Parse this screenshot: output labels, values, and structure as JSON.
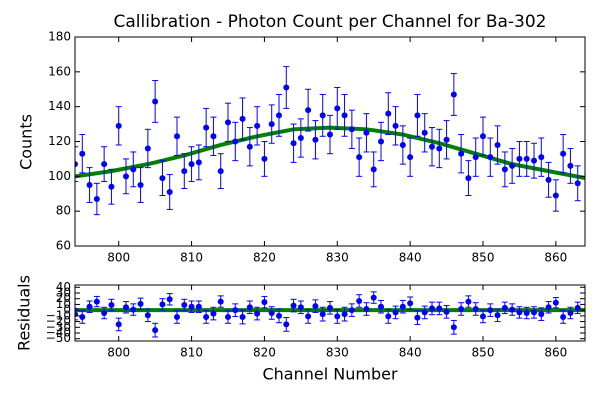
{
  "chart_data": [
    {
      "type": "errorbar",
      "title": "Callibration - Photon Count per Channel for Ba-302",
      "ylabel": "Counts",
      "x": [
        794,
        795,
        796,
        797,
        798,
        799,
        800,
        801,
        802,
        803,
        804,
        805,
        806,
        807,
        808,
        809,
        810,
        811,
        812,
        813,
        814,
        815,
        816,
        817,
        818,
        819,
        820,
        821,
        822,
        823,
        824,
        825,
        826,
        827,
        828,
        829,
        830,
        831,
        832,
        833,
        834,
        835,
        836,
        837,
        838,
        839,
        840,
        841,
        842,
        843,
        844,
        845,
        846,
        847,
        848,
        849,
        850,
        851,
        852,
        853,
        854,
        855,
        856,
        857,
        858,
        859,
        860,
        861,
        862,
        863
      ],
      "values": [
        107,
        113,
        95,
        87,
        107,
        94,
        129,
        100,
        104,
        95,
        116,
        143,
        99,
        91,
        123,
        103,
        107,
        108,
        128,
        123,
        103,
        131,
        120,
        133,
        117,
        129,
        110,
        130,
        135,
        151,
        119,
        122,
        138,
        121,
        135,
        124,
        139,
        135,
        127,
        111,
        125,
        104,
        120,
        136,
        129,
        118,
        111,
        135,
        125,
        117,
        116,
        121,
        147,
        113,
        99,
        111,
        123,
        111,
        118,
        104,
        106,
        110,
        110,
        109,
        111,
        98,
        89,
        113,
        106,
        96
      ],
      "errors": [
        10,
        11,
        10,
        9,
        10,
        10,
        11,
        10,
        10,
        10,
        11,
        12,
        10,
        10,
        11,
        10,
        10,
        10,
        11,
        11,
        10,
        11,
        11,
        12,
        11,
        11,
        10,
        11,
        12,
        12,
        11,
        11,
        12,
        11,
        12,
        11,
        12,
        12,
        11,
        11,
        11,
        10,
        11,
        12,
        11,
        11,
        11,
        12,
        11,
        11,
        11,
        11,
        12,
        11,
        10,
        11,
        11,
        11,
        11,
        10,
        10,
        10,
        10,
        10,
        11,
        10,
        9,
        11,
        10,
        10
      ],
      "color": "#0000ff",
      "fit": {
        "x": [
          794,
          799,
          804,
          809,
          814,
          819,
          824,
          829,
          834,
          839,
          844,
          849,
          854,
          859,
          864
        ],
        "values": [
          100,
          103,
          107,
          112,
          118,
          123,
          127,
          128,
          127,
          124,
          119,
          113,
          107,
          103,
          99
        ],
        "color": "#008000"
      },
      "xlim": [
        794,
        864
      ],
      "ylim": [
        60,
        180
      ],
      "xticks": [
        800,
        810,
        820,
        830,
        840,
        850,
        860
      ],
      "yticks": [
        60,
        80,
        100,
        120,
        140,
        160,
        180
      ]
    },
    {
      "type": "errorbar",
      "xlabel": "Channel Number",
      "ylabel": "Residuals",
      "x": [
        794,
        795,
        796,
        797,
        798,
        799,
        800,
        801,
        802,
        803,
        804,
        805,
        806,
        807,
        808,
        809,
        810,
        811,
        812,
        813,
        814,
        815,
        816,
        817,
        818,
        819,
        820,
        821,
        822,
        823,
        824,
        825,
        826,
        827,
        828,
        829,
        830,
        831,
        832,
        833,
        834,
        835,
        836,
        837,
        838,
        839,
        840,
        841,
        842,
        843,
        844,
        845,
        846,
        847,
        848,
        849,
        850,
        851,
        852,
        853,
        854,
        855,
        856,
        857,
        858,
        859,
        860,
        861,
        862,
        863
      ],
      "values": [
        -7,
        -12,
        6,
        15,
        -5,
        9,
        -25,
        5,
        1,
        11,
        -9,
        -35,
        10,
        19,
        -12,
        9,
        6,
        6,
        -12,
        -6,
        15,
        -12,
        0,
        -12,
        5,
        -6,
        14,
        -5,
        -10,
        -25,
        8,
        5,
        -11,
        7,
        -7,
        4,
        -11,
        -7,
        0,
        16,
        2,
        22,
        6,
        -11,
        -4,
        6,
        12,
        -13,
        -4,
        3,
        3,
        -3,
        -30,
        2,
        15,
        2,
        -11,
        0,
        -9,
        4,
        1,
        -4,
        -5,
        -4,
        -7,
        5,
        13,
        -12,
        -5,
        4
      ],
      "errors": [
        10,
        11,
        10,
        9,
        10,
        10,
        11,
        10,
        10,
        10,
        11,
        12,
        10,
        10,
        11,
        10,
        10,
        10,
        11,
        11,
        10,
        11,
        11,
        12,
        11,
        11,
        10,
        11,
        12,
        12,
        11,
        11,
        12,
        11,
        12,
        11,
        12,
        12,
        11,
        11,
        11,
        10,
        11,
        12,
        11,
        11,
        11,
        12,
        11,
        11,
        11,
        11,
        12,
        11,
        10,
        11,
        11,
        11,
        11,
        10,
        10,
        10,
        10,
        10,
        11,
        10,
        9,
        11,
        10,
        10
      ],
      "color": "#0000ff",
      "fit": {
        "x": [
          794,
          864
        ],
        "values": [
          0,
          0
        ],
        "color": "#008000"
      },
      "xlim": [
        794,
        864
      ],
      "ylim": [
        -54,
        44
      ],
      "xticks": [
        800,
        810,
        820,
        830,
        840,
        850,
        860
      ],
      "yticks": [
        {
          "value": -50,
          "label": "−50"
        },
        {
          "value": -40,
          "label": "−40"
        },
        {
          "value": -30,
          "label": "−30"
        },
        {
          "value": -20,
          "label": "−20"
        },
        {
          "value": -10,
          "label": "−10"
        },
        0,
        10,
        20,
        30,
        40
      ]
    }
  ]
}
